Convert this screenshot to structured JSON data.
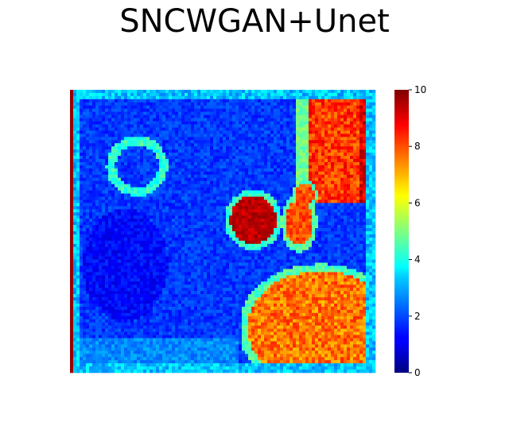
{
  "chart_data": {
    "type": "heatmap",
    "title": "SNCWGAN+Unet",
    "xlabel": "",
    "ylabel": "",
    "axes_visible": false,
    "grid": false,
    "colormap": "jet",
    "colorbar": {
      "min": 0,
      "max": 10,
      "ticks": [
        0,
        2,
        4,
        6,
        8,
        10
      ],
      "tick_labels": [
        "0",
        "2",
        "4",
        "6",
        "8",
        "10"
      ],
      "placement": "right"
    },
    "grid_resolution": [
      96,
      90
    ],
    "value_range": [
      0,
      10
    ],
    "regions": [
      {
        "name": "background",
        "value": 1.8
      },
      {
        "name": "top-right tissue",
        "value": 8.2
      },
      {
        "name": "bottom-right tissue",
        "value": 7.6
      },
      {
        "name": "central round lesion",
        "value": 9.4
      },
      {
        "name": "central small lesions",
        "value": 8.0
      },
      {
        "name": "left ring boundary",
        "value": 4.2
      },
      {
        "name": "image border",
        "value": 3.2
      }
    ]
  },
  "colors": {
    "jet_low": "#00007f",
    "jet_mid": "#7fff7f",
    "jet_high": "#7f0000"
  }
}
